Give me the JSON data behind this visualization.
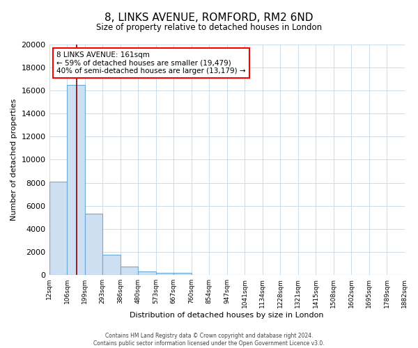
{
  "title": "8, LINKS AVENUE, ROMFORD, RM2 6ND",
  "subtitle": "Size of property relative to detached houses in London",
  "xlabel": "Distribution of detached houses by size in London",
  "ylabel": "Number of detached properties",
  "bar_values": [
    8100,
    16500,
    5300,
    1750,
    700,
    300,
    200,
    150,
    0,
    0,
    0,
    0,
    0,
    0,
    0,
    0,
    0,
    0,
    0,
    0
  ],
  "categories": [
    "12sqm",
    "106sqm",
    "199sqm",
    "293sqm",
    "386sqm",
    "480sqm",
    "573sqm",
    "667sqm",
    "760sqm",
    "854sqm",
    "947sqm",
    "1041sqm",
    "1134sqm",
    "1228sqm",
    "1321sqm",
    "1415sqm",
    "1508sqm",
    "1602sqm",
    "1695sqm",
    "1789sqm",
    "1882sqm"
  ],
  "bar_color": "#cddff0",
  "bar_edge_color": "#6aaad4",
  "ylim": [
    0,
    20000
  ],
  "yticks": [
    0,
    2000,
    4000,
    6000,
    8000,
    10000,
    12000,
    14000,
    16000,
    18000,
    20000
  ],
  "red_line_x": 1.55,
  "annotation_title": "8 LINKS AVENUE: 161sqm",
  "annotation_line1": "← 59% of detached houses are smaller (19,479)",
  "annotation_line2": "40% of semi-detached houses are larger (13,179) →",
  "footer1": "Contains HM Land Registry data © Crown copyright and database right 2024.",
  "footer2": "Contains public sector information licensed under the Open Government Licence v3.0.",
  "background_color": "#ffffff",
  "grid_color": "#c5d5e5"
}
